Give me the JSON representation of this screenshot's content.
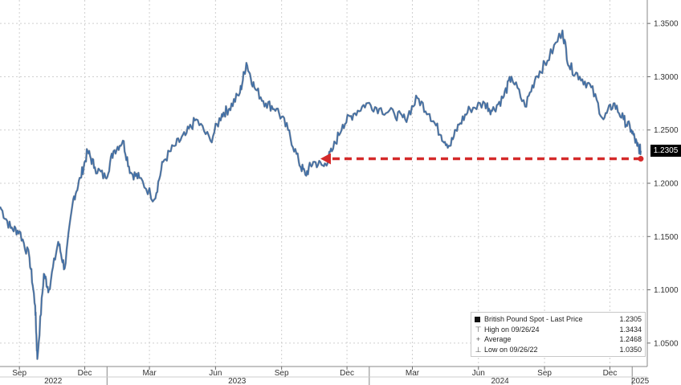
{
  "chart_data": {
    "type": "line",
    "title": "",
    "xlabel": "",
    "ylabel": "",
    "ylim": [
      1.028,
      1.372
    ],
    "xlim": [
      "2022-08-05",
      "2025-01-22"
    ],
    "y_ticks": [
      "1.0500",
      "1.1000",
      "1.1500",
      "1.2000",
      "1.2500",
      "1.3000",
      "1.3500"
    ],
    "x_month_ticks": [
      {
        "label": "Sep",
        "date": "2022-09-01"
      },
      {
        "label": "Dec",
        "date": "2022-12-01"
      },
      {
        "label": "Mar",
        "date": "2023-03-01"
      },
      {
        "label": "Jun",
        "date": "2023-06-01"
      },
      {
        "label": "Sep",
        "date": "2023-09-01"
      },
      {
        "label": "Dec",
        "date": "2023-12-01"
      },
      {
        "label": "Mar",
        "date": "2024-03-01"
      },
      {
        "label": "Jun",
        "date": "2024-06-01"
      },
      {
        "label": "Sep",
        "date": "2024-09-01"
      },
      {
        "label": "Dec",
        "date": "2024-12-01"
      }
    ],
    "x_year_labels": [
      {
        "label": "2022",
        "date": "2022-10-18"
      },
      {
        "label": "2023",
        "date": "2023-07-01"
      },
      {
        "label": "2024",
        "date": "2024-07-01"
      },
      {
        "label": "2025",
        "date": "2025-01-12"
      }
    ],
    "year_boundaries": [
      "2023-01-01",
      "2024-01-01",
      "2025-01-01"
    ],
    "grid": true,
    "line_color": "#3b6da8",
    "series": [
      {
        "x": [
          "2022-08-05",
          "2022-08-20",
          "2022-09-01",
          "2022-09-15",
          "2022-09-23",
          "2022-09-26",
          "2022-10-05",
          "2022-10-12",
          "2022-10-25",
          "2022-11-03",
          "2022-11-15",
          "2022-11-25",
          "2022-12-05",
          "2022-12-15",
          "2022-12-30",
          "2023-01-10",
          "2023-01-23",
          "2023-02-03",
          "2023-02-15",
          "2023-03-08",
          "2023-03-20",
          "2023-04-05",
          "2023-04-20",
          "2023-05-05",
          "2023-05-25",
          "2023-06-10",
          "2023-06-20",
          "2023-07-05",
          "2023-07-14",
          "2023-07-25",
          "2023-08-10",
          "2023-08-25",
          "2023-09-10",
          "2023-09-25",
          "2023-10-04",
          "2023-10-15",
          "2023-10-30",
          "2023-11-10",
          "2023-11-25",
          "2023-12-10",
          "2023-12-28",
          "2024-01-15",
          "2024-02-05",
          "2024-02-20",
          "2024-03-08",
          "2024-03-25",
          "2024-04-10",
          "2024-04-22",
          "2024-05-05",
          "2024-05-20",
          "2024-06-10",
          "2024-06-20",
          "2024-07-05",
          "2024-07-17",
          "2024-08-05",
          "2024-08-20",
          "2024-09-05",
          "2024-09-26",
          "2024-10-05",
          "2024-10-20",
          "2024-11-05",
          "2024-11-22",
          "2024-12-06",
          "2024-12-20",
          "2024-12-31",
          "2025-01-08",
          "2025-01-13"
        ],
        "y": [
          1.178,
          1.158,
          1.155,
          1.13,
          1.085,
          1.035,
          1.115,
          1.1,
          1.145,
          1.12,
          1.185,
          1.205,
          1.23,
          1.215,
          1.205,
          1.23,
          1.24,
          1.21,
          1.205,
          1.185,
          1.22,
          1.235,
          1.245,
          1.26,
          1.24,
          1.265,
          1.27,
          1.285,
          1.313,
          1.29,
          1.275,
          1.27,
          1.25,
          1.22,
          1.208,
          1.22,
          1.216,
          1.23,
          1.255,
          1.265,
          1.275,
          1.27,
          1.265,
          1.26,
          1.28,
          1.265,
          1.245,
          1.235,
          1.255,
          1.27,
          1.275,
          1.268,
          1.28,
          1.3,
          1.272,
          1.3,
          1.315,
          1.3434,
          1.31,
          1.3,
          1.29,
          1.26,
          1.275,
          1.26,
          1.25,
          1.235,
          1.2305
        ]
      }
    ],
    "last_price_label": "1.2305",
    "annotation": {
      "type": "dashed-arrow",
      "color": "#d42a2a",
      "from": {
        "x": "2025-01-13",
        "y": 1.223
      },
      "to": {
        "x": "2023-10-25",
        "y": 1.223
      }
    }
  },
  "legend": {
    "rows": [
      {
        "symbol": "■",
        "name": "British Pound Spot - Last Price",
        "value": "1.2305"
      },
      {
        "symbol": "⊤",
        "name": "High on 09/26/24",
        "value": "1.3434"
      },
      {
        "symbol": "+",
        "name": "Average",
        "value": "1.2468"
      },
      {
        "symbol": "⊥",
        "name": "Low on 09/26/22",
        "value": "1.0350"
      }
    ]
  }
}
